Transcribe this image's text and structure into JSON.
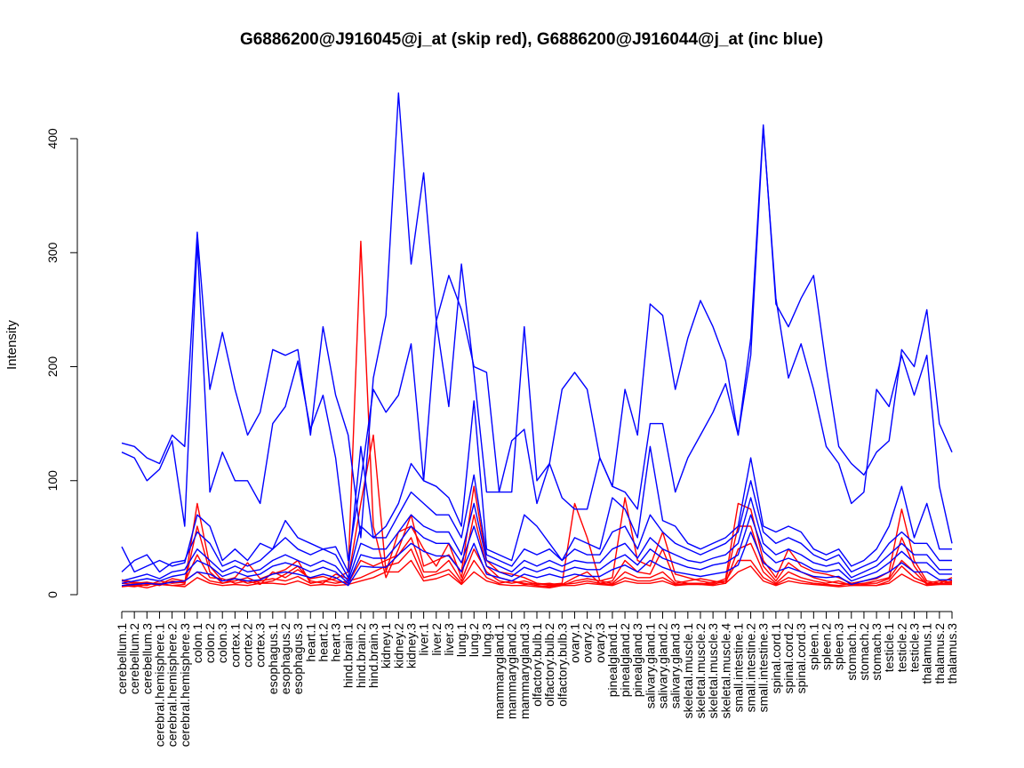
{
  "chart_data": {
    "type": "line",
    "title": "G6886200@J916045@j_at (skip red), G6886200@J916044@j_at (inc blue)",
    "xlabel": "",
    "ylabel": "Intensity",
    "ylim": [
      0,
      400
    ],
    "yticks": [
      0,
      100,
      200,
      300,
      400
    ],
    "grid": false,
    "legend": "none",
    "colors": {
      "skip": "#ff0000",
      "inc": "#0000ff"
    },
    "categories": [
      "cerebellum.1",
      "cerebellum.2",
      "cerebellum.3",
      "cerebral.hemisphere.1",
      "cerebral.hemisphere.2",
      "cerebral.hemisphere.3",
      "colon.1",
      "colon.2",
      "colon.3",
      "cortex.1",
      "cortex.2",
      "cortex.3",
      "esophagus.1",
      "esophagus.2",
      "esophagus.3",
      "heart.1",
      "heart.2",
      "heart.3",
      "hind.brain.1",
      "hind.brain.2",
      "hind.brain.3",
      "kidney.1",
      "kidney.2",
      "kidney.3",
      "liver.1",
      "liver.2",
      "liver.3",
      "lung.1",
      "lung.2",
      "lung.3",
      "mammarygland.1",
      "mammarygland.2",
      "mammarygland.3",
      "olfactory.bulb.1",
      "olfactory.bulb.2",
      "olfactory.bulb.3",
      "ovary.1",
      "ovary.2",
      "ovary.3",
      "pinealgland.1",
      "pinealgland.2",
      "pinealgland.3",
      "salivary.gland.1",
      "salivary.gland.2",
      "salivary.gland.3",
      "skeletal.muscle.1",
      "skeletal.muscle.2",
      "skeletal.muscle.3",
      "skeletal.muscle.4",
      "small.intestine.1",
      "small.intestine.2",
      "small.intestine.3",
      "spinal.cord.1",
      "spinal.cord.2",
      "spinal.cord.3",
      "spleen.1",
      "spleen.2",
      "spleen.3",
      "stomach.1",
      "stomach.2",
      "stomach.3",
      "testicle.1",
      "testicle.2",
      "testicle.3",
      "thalamus.1",
      "thalamus.2",
      "thalamus.3"
    ],
    "series": [
      {
        "group": "skip",
        "values": [
          13,
          11,
          10,
          8,
          12,
          10,
          80,
          25,
          12,
          15,
          28,
          14,
          18,
          22,
          30,
          10,
          12,
          14,
          20,
          310,
          60,
          15,
          40,
          70,
          25,
          30,
          35,
          20,
          95,
          30,
          20,
          18,
          15,
          10,
          9,
          10,
          80,
          50,
          12,
          15,
          85,
          30,
          25,
          55,
          18,
          15,
          12,
          10,
          14,
          80,
          75,
          30,
          15,
          40,
          25,
          20,
          18,
          15,
          10,
          12,
          14,
          20,
          75,
          30,
          12,
          10,
          15
        ]
      },
      {
        "group": "skip",
        "values": [
          8,
          7,
          9,
          10,
          8,
          9,
          60,
          20,
          10,
          12,
          15,
          10,
          12,
          18,
          25,
          12,
          10,
          18,
          14,
          80,
          140,
          20,
          55,
          60,
          40,
          25,
          45,
          15,
          70,
          25,
          15,
          12,
          10,
          8,
          7,
          9,
          15,
          20,
          10,
          12,
          30,
          20,
          18,
          40,
          12,
          10,
          9,
          11,
          12,
          60,
          60,
          25,
          12,
          28,
          20,
          15,
          12,
          10,
          9,
          10,
          12,
          15,
          50,
          25,
          10,
          9,
          12
        ]
      },
      {
        "group": "skip",
        "values": [
          10,
          9,
          8,
          12,
          10,
          11,
          35,
          15,
          14,
          10,
          12,
          9,
          20,
          15,
          22,
          14,
          16,
          12,
          10,
          30,
          25,
          30,
          35,
          50,
          20,
          20,
          30,
          12,
          40,
          20,
          12,
          10,
          12,
          9,
          10,
          8,
          12,
          14,
          12,
          10,
          20,
          15,
          15,
          20,
          10,
          12,
          14,
          12,
          10,
          40,
          45,
          20,
          10,
          20,
          15,
          12,
          10,
          12,
          8,
          10,
          10,
          14,
          30,
          20,
          9,
          10,
          10
        ]
      },
      {
        "group": "skip",
        "values": [
          12,
          10,
          11,
          9,
          14,
          12,
          20,
          12,
          10,
          14,
          10,
          12,
          14,
          12,
          16,
          10,
          12,
          10,
          12,
          15,
          20,
          25,
          28,
          40,
          15,
          18,
          22,
          10,
          30,
          15,
          10,
          12,
          9,
          10,
          8,
          9,
          10,
          12,
          10,
          9,
          15,
          12,
          12,
          15,
          9,
          10,
          10,
          9,
          12,
          30,
          30,
          15,
          9,
          15,
          12,
          10,
          9,
          8,
          10,
          9,
          8,
          12,
          25,
          15,
          10,
          12,
          11
        ]
      },
      {
        "group": "skip",
        "values": [
          7,
          8,
          6,
          9,
          8,
          7,
          15,
          10,
          8,
          9,
          8,
          10,
          10,
          9,
          12,
          8,
          9,
          8,
          9,
          12,
          15,
          20,
          20,
          30,
          12,
          14,
          18,
          9,
          20,
          12,
          9,
          8,
          8,
          7,
          6,
          8,
          8,
          10,
          9,
          8,
          12,
          10,
          10,
          12,
          8,
          9,
          9,
          8,
          10,
          20,
          25,
          12,
          8,
          12,
          10,
          9,
          8,
          7,
          8,
          8,
          8,
          10,
          18,
          12,
          8,
          9,
          9
        ]
      },
      {
        "group": "inc",
        "values": [
          133,
          130,
          120,
          115,
          140,
          130,
          318,
          180,
          230,
          180,
          140,
          160,
          215,
          210,
          215,
          140,
          235,
          175,
          140,
          50,
          190,
          245,
          440,
          290,
          370,
          240,
          280,
          250,
          200,
          195,
          90,
          90,
          235,
          100,
          115,
          180,
          195,
          180,
          120,
          95,
          180,
          140,
          255,
          245,
          180,
          225,
          258,
          235,
          205,
          140,
          225,
          412,
          255,
          235,
          260,
          280,
          200,
          130,
          115,
          105,
          125,
          135,
          215,
          200,
          250,
          150,
          125
        ]
      },
      {
        "group": "inc",
        "values": [
          125,
          120,
          100,
          110,
          135,
          60,
          310,
          90,
          125,
          100,
          100,
          80,
          150,
          165,
          205,
          145,
          175,
          120,
          30,
          100,
          180,
          160,
          175,
          220,
          100,
          240,
          165,
          290,
          195,
          90,
          90,
          135,
          145,
          80,
          115,
          85,
          75,
          75,
          120,
          95,
          90,
          75,
          150,
          150,
          90,
          120,
          140,
          160,
          185,
          140,
          210,
          410,
          260,
          190,
          220,
          180,
          130,
          115,
          80,
          90,
          180,
          165,
          210,
          175,
          210,
          95,
          45
        ]
      },
      {
        "group": "inc",
        "values": [
          42,
          20,
          25,
          30,
          25,
          28,
          70,
          60,
          30,
          40,
          30,
          45,
          40,
          65,
          50,
          45,
          40,
          42,
          20,
          130,
          50,
          60,
          80,
          115,
          100,
          95,
          85,
          60,
          170,
          40,
          35,
          30,
          70,
          60,
          45,
          30,
          50,
          45,
          40,
          85,
          75,
          50,
          130,
          65,
          60,
          45,
          40,
          45,
          50,
          60,
          120,
          60,
          55,
          60,
          55,
          40,
          35,
          40,
          25,
          30,
          40,
          60,
          95,
          50,
          80,
          40,
          40
        ]
      },
      {
        "group": "inc",
        "values": [
          20,
          30,
          35,
          20,
          28,
          30,
          55,
          45,
          25,
          30,
          25,
          30,
          40,
          50,
          40,
          35,
          40,
          35,
          15,
          60,
          50,
          50,
          70,
          90,
          80,
          70,
          70,
          50,
          105,
          35,
          30,
          25,
          40,
          35,
          40,
          30,
          40,
          35,
          35,
          55,
          60,
          40,
          70,
          55,
          45,
          40,
          35,
          40,
          45,
          55,
          100,
          55,
          45,
          50,
          45,
          35,
          30,
          35,
          20,
          25,
          30,
          45,
          55,
          45,
          45,
          30,
          30
        ]
      },
      {
        "group": "inc",
        "values": [
          12,
          15,
          18,
          14,
          20,
          22,
          40,
          30,
          20,
          25,
          20,
          22,
          30,
          35,
          30,
          25,
          30,
          25,
          12,
          45,
          40,
          40,
          55,
          70,
          60,
          55,
          55,
          35,
          80,
          30,
          25,
          20,
          30,
          25,
          30,
          25,
          30,
          28,
          28,
          40,
          45,
          32,
          50,
          40,
          35,
          30,
          28,
          32,
          35,
          45,
          85,
          45,
          35,
          40,
          35,
          28,
          25,
          28,
          15,
          20,
          25,
          35,
          45,
          35,
          35,
          22,
          22
        ]
      },
      {
        "group": "inc",
        "values": [
          10,
          12,
          14,
          12,
          16,
          18,
          30,
          25,
          16,
          20,
          16,
          18,
          25,
          28,
          25,
          20,
          24,
          20,
          10,
          35,
          32,
          32,
          45,
          60,
          50,
          45,
          45,
          28,
          60,
          25,
          20,
          16,
          24,
          20,
          24,
          20,
          24,
          22,
          22,
          30,
          35,
          26,
          40,
          32,
          28,
          24,
          22,
          26,
          28,
          35,
          70,
          38,
          28,
          32,
          28,
          22,
          20,
          22,
          12,
          16,
          20,
          28,
          38,
          28,
          28,
          18,
          18
        ]
      },
      {
        "group": "inc",
        "values": [
          8,
          9,
          10,
          9,
          11,
          12,
          20,
          18,
          12,
          14,
          12,
          13,
          18,
          20,
          18,
          15,
          18,
          15,
          8,
          25,
          24,
          24,
          35,
          45,
          38,
          34,
          34,
          20,
          45,
          18,
          15,
          12,
          18,
          15,
          18,
          15,
          18,
          16,
          16,
          22,
          26,
          20,
          30,
          24,
          20,
          18,
          16,
          18,
          20,
          26,
          55,
          28,
          20,
          24,
          20,
          16,
          15,
          16,
          9,
          12,
          15,
          20,
          28,
          20,
          20,
          13,
          13
        ]
      }
    ]
  }
}
